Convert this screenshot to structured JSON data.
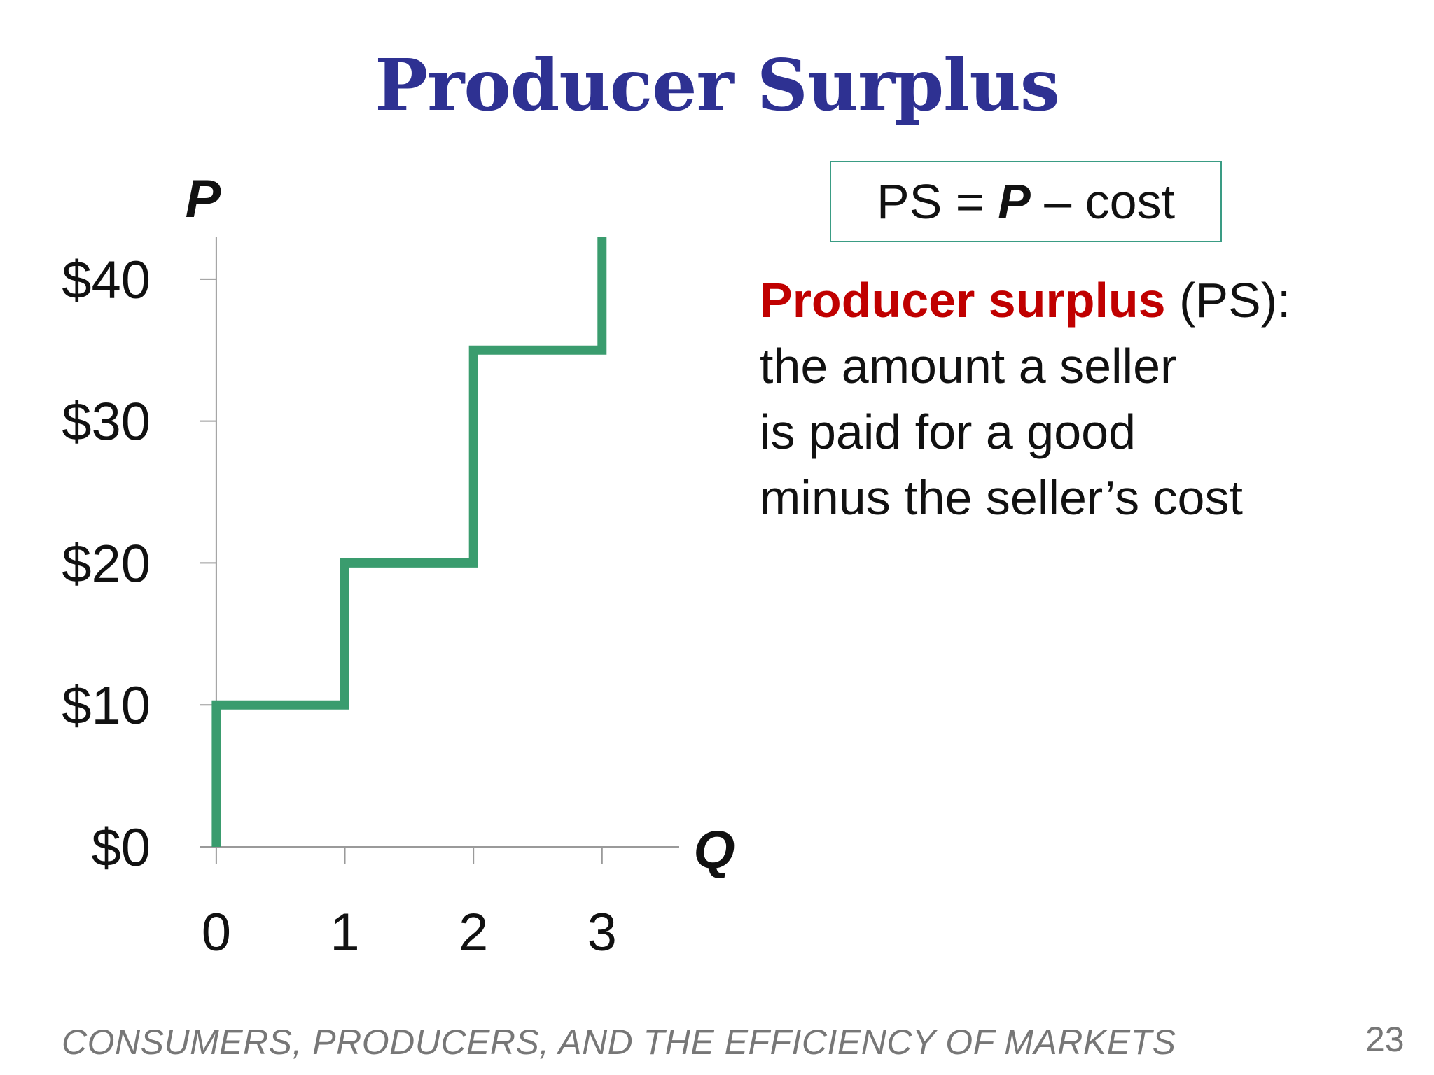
{
  "title": "Producer Surplus",
  "formula": {
    "left": "PS = ",
    "p": "P",
    "right": " – cost"
  },
  "definition": {
    "term": "Producer surplus",
    "term_suffix": " (PS):",
    "lines": [
      "the amount a seller",
      "is paid for a good",
      "minus the seller’s cost"
    ]
  },
  "footer": "CONSUMERS, PRODUCERS, AND THE EFFICIENCY OF MARKETS",
  "page_number": "23",
  "colors": {
    "title": "#2e3192",
    "term": "#c00000",
    "curve": "#3a9c6e",
    "box_border": "#3a9c84"
  },
  "chart_data": {
    "type": "line",
    "step": true,
    "xlabel": "Q",
    "ylabel": "P",
    "x_ticks": [
      0,
      1,
      2,
      3
    ],
    "x_tick_labels": [
      "0",
      "1",
      "2",
      "3"
    ],
    "y_ticks": [
      0,
      10,
      20,
      30,
      40
    ],
    "y_tick_labels": [
      "$0",
      "$10",
      "$20",
      "$30",
      "$40"
    ],
    "xlim": [
      -0.13,
      3.6
    ],
    "ylim": [
      0,
      43
    ],
    "grid": false,
    "series": [
      {
        "points": [
          [
            0,
            0
          ],
          [
            0,
            10
          ],
          [
            1,
            10
          ],
          [
            1,
            20
          ],
          [
            2,
            20
          ],
          [
            2,
            35
          ],
          [
            3,
            35
          ],
          [
            3,
            43
          ]
        ]
      }
    ]
  }
}
